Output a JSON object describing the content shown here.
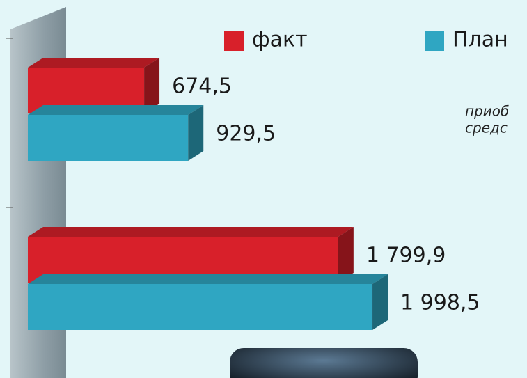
{
  "chart_data": {
    "type": "bar3d",
    "orientation": "horizontal",
    "categories": [
      null,
      null
    ],
    "series": [
      {
        "name": "факт",
        "color": "#d8202a",
        "values": [
          674.5,
          1799.9
        ],
        "value_labels": [
          "674,5",
          "1 799,9"
        ]
      },
      {
        "name": "План",
        "color": "#2fa6c2",
        "values": [
          929.5,
          1998.5
        ],
        "value_labels": [
          "929,5",
          "1 998,5"
        ]
      }
    ],
    "xlim": [
      0,
      2000
    ],
    "annotations": [
      "приоб",
      "средс"
    ]
  }
}
